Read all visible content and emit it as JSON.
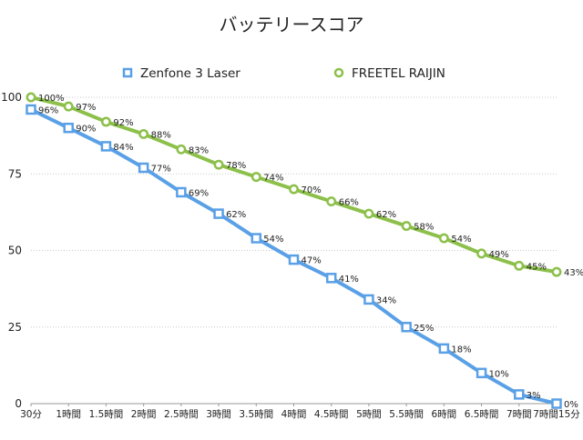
{
  "chart_data": {
    "type": "line",
    "title": "バッテリースコア",
    "xlabel": "",
    "ylabel": "",
    "ylim": [
      0,
      100
    ],
    "yticks": [
      0,
      25,
      50,
      75,
      100
    ],
    "grid": true,
    "legend_position": "top",
    "categories": [
      "30分",
      "1時間",
      "1.5時間",
      "2時間",
      "2.5時間",
      "3時間",
      "3.5時間",
      "4時間",
      "4.5時間",
      "5時間",
      "5.5時間",
      "6時間",
      "6.5時間",
      "7時間",
      "7時間15分"
    ],
    "series": [
      {
        "name": "Zenfone 3 Laser",
        "color": "#5aa0e6",
        "marker": "square",
        "values": [
          96,
          90,
          84,
          77,
          69,
          62,
          54,
          47,
          41,
          34,
          25,
          18,
          10,
          3,
          0
        ],
        "labels": [
          "96%",
          "90%",
          "84%",
          "77%",
          "69%",
          "62%",
          "54%",
          "47%",
          "41%",
          "34%",
          "25%",
          "18%",
          "10%",
          "3%",
          "0%"
        ]
      },
      {
        "name": "FREETEL RAIJIN",
        "color": "#8cc04a",
        "marker": "circle",
        "values": [
          100,
          97,
          92,
          88,
          83,
          78,
          74,
          70,
          66,
          62,
          58,
          54,
          49,
          45,
          43
        ],
        "labels": [
          "100%",
          "97%",
          "92%",
          "88%",
          "83%",
          "78%",
          "74%",
          "70%",
          "66%",
          "62%",
          "58%",
          "54%",
          "49%",
          "45%",
          "43%"
        ]
      }
    ]
  }
}
